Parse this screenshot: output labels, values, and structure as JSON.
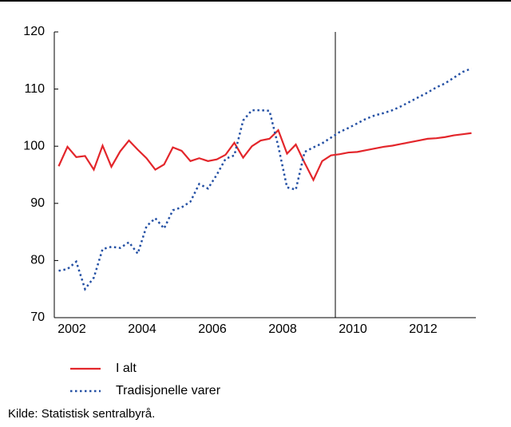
{
  "chart_data": {
    "type": "line",
    "x": [
      2002,
      2002.25,
      2002.5,
      2002.75,
      2003,
      2003.25,
      2003.5,
      2003.75,
      2004,
      2004.25,
      2004.5,
      2004.75,
      2005,
      2005.25,
      2005.5,
      2005.75,
      2006,
      2006.25,
      2006.5,
      2006.75,
      2007,
      2007.25,
      2007.5,
      2007.75,
      2008,
      2008.25,
      2008.5,
      2008.75,
      2009,
      2009.25,
      2009.5,
      2009.75,
      2010,
      2010.25,
      2010.5,
      2010.75,
      2011,
      2011.25,
      2011.5,
      2011.75,
      2012,
      2012.25,
      2012.5,
      2012.75,
      2013,
      2013.25,
      2013.5,
      2013.75
    ],
    "series": [
      {
        "name": "I alt",
        "color": "#e3262b",
        "style": "solid",
        "values": [
          96.5,
          99.9,
          98.1,
          98.3,
          95.9,
          100.1,
          96.4,
          99.1,
          101.0,
          99.4,
          97.9,
          95.9,
          96.8,
          99.8,
          99.2,
          97.4,
          97.9,
          97.4,
          97.7,
          98.5,
          100.6,
          98.0,
          100.0,
          101.0,
          101.3,
          102.8,
          98.7,
          100.3,
          97.1,
          94.1,
          97.4,
          98.4,
          98.6,
          98.9,
          99.0,
          99.3,
          99.6,
          99.9,
          100.1,
          100.4,
          100.7,
          101.0,
          101.3,
          101.4,
          101.6,
          101.9,
          102.1,
          102.3
        ]
      },
      {
        "name": "Tradisjonelle varer",
        "color": "#2450a4",
        "style": "dotted",
        "values": [
          78.2,
          78.5,
          79.8,
          75.0,
          77.0,
          82.0,
          82.4,
          82.2,
          83.2,
          81.2,
          86.0,
          87.4,
          85.6,
          88.8,
          89.3,
          90.3,
          93.4,
          92.6,
          95.0,
          97.8,
          98.4,
          104.5,
          106.3,
          106.3,
          106.2,
          100.0,
          92.8,
          92.4,
          99.0,
          99.8,
          100.5,
          101.5,
          102.5,
          103.2,
          104.0,
          104.8,
          105.4,
          105.8,
          106.3,
          107.0,
          107.8,
          108.6,
          109.4,
          110.3,
          111.0,
          112.0,
          113.0,
          113.6
        ]
      }
    ],
    "xlim": [
      2001.875,
      2013.875
    ],
    "xticks": [
      {
        "value": 2002.375,
        "label": "2002"
      },
      {
        "value": 2004.375,
        "label": "2004"
      },
      {
        "value": 2006.375,
        "label": "2006"
      },
      {
        "value": 2008.375,
        "label": "2008"
      },
      {
        "value": 2010.375,
        "label": "2010"
      },
      {
        "value": 2012.375,
        "label": "2012"
      }
    ],
    "ylim": [
      70,
      120
    ],
    "yticks": [
      70,
      80,
      90,
      100,
      110,
      120
    ],
    "vline": 2009.875,
    "source": "Kilde:  Statistisk sentralbyrå."
  }
}
